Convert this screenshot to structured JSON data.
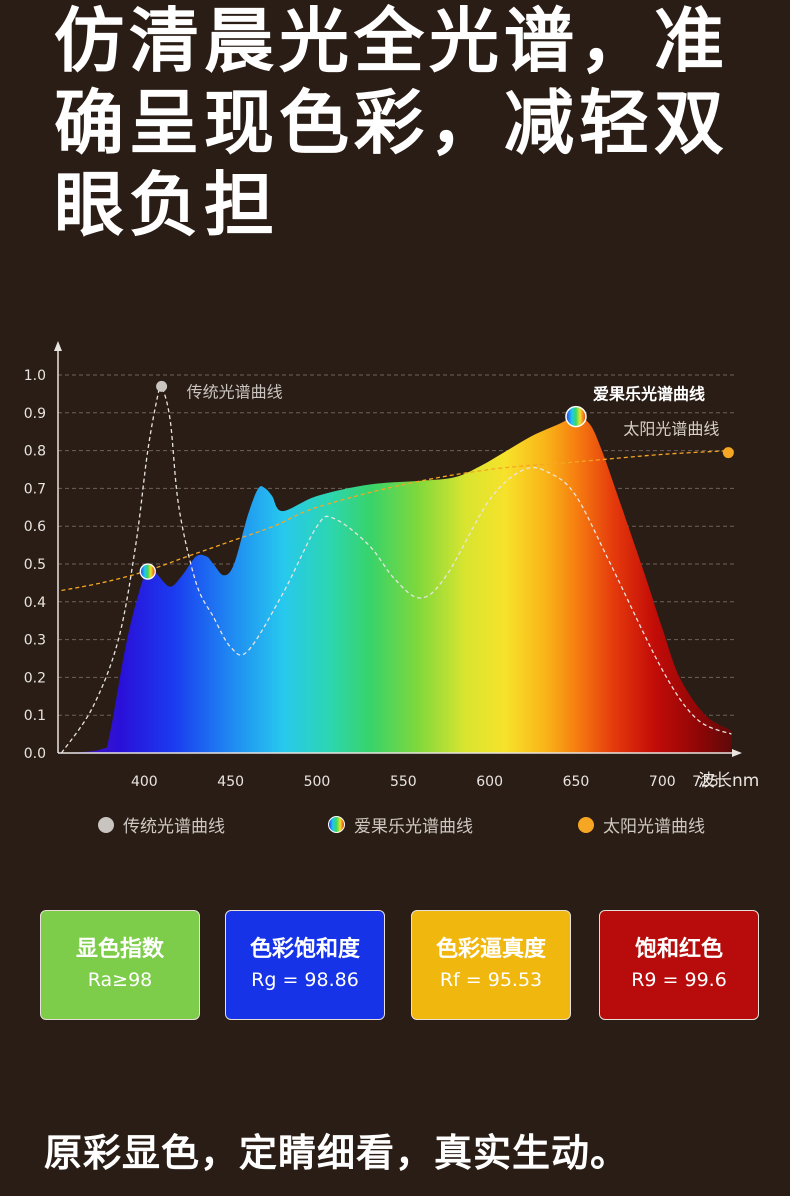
{
  "headline": "仿清晨光全光谱，准确呈现色彩，减轻双眼负担",
  "chart_data": {
    "type": "area",
    "title": "",
    "xlabel": "波长nm",
    "ylabel": "",
    "xlim": [
      350,
      745
    ],
    "ylim": [
      0,
      1.0
    ],
    "x_ticks": [
      400,
      450,
      500,
      550,
      600,
      650,
      700,
      725
    ],
    "y_ticks": [
      "0.0",
      "0.1",
      "0.2",
      "0.3",
      "0.4",
      "0.5",
      "0.6",
      "0.7",
      "0.8",
      "0.9",
      "1.0"
    ],
    "grid": true,
    "series": [
      {
        "name": "传统光谱曲线",
        "style": "dashed-line",
        "x": [
          352,
          370,
          385,
          395,
          402,
          408,
          410,
          415,
          420,
          430,
          440,
          450,
          460,
          480,
          500,
          510,
          530,
          545,
          560,
          575,
          600,
          620,
          635,
          650,
          670,
          700,
          720,
          740
        ],
        "y": [
          0.0,
          0.12,
          0.3,
          0.55,
          0.8,
          0.95,
          0.97,
          0.88,
          0.65,
          0.45,
          0.36,
          0.28,
          0.27,
          0.42,
          0.6,
          0.62,
          0.55,
          0.46,
          0.41,
          0.47,
          0.67,
          0.75,
          0.74,
          0.68,
          0.5,
          0.22,
          0.09,
          0.05
        ]
      },
      {
        "name": "爱果乐光谱曲线",
        "style": "spectrum-area",
        "x": [
          352,
          375,
          380,
          390,
          400,
          404,
          408,
          415,
          422,
          430,
          436,
          440,
          446,
          452,
          460,
          466,
          470,
          474,
          480,
          500,
          530,
          560,
          580,
          595,
          610,
          625,
          640,
          650,
          658,
          665,
          675,
          690,
          700,
          710,
          725,
          740
        ],
        "y": [
          0.0,
          0.01,
          0.05,
          0.3,
          0.47,
          0.49,
          0.47,
          0.44,
          0.47,
          0.52,
          0.52,
          0.5,
          0.47,
          0.5,
          0.63,
          0.7,
          0.7,
          0.68,
          0.64,
          0.68,
          0.71,
          0.72,
          0.73,
          0.76,
          0.8,
          0.84,
          0.87,
          0.89,
          0.87,
          0.8,
          0.67,
          0.47,
          0.33,
          0.2,
          0.1,
          0.06
        ]
      },
      {
        "name": "太阳光谱曲线",
        "style": "dashed-line",
        "x": [
          352,
          375,
          400,
          425,
          450,
          475,
          500,
          550,
          600,
          650,
          700,
          740
        ],
        "y": [
          0.43,
          0.45,
          0.48,
          0.52,
          0.56,
          0.6,
          0.65,
          0.71,
          0.75,
          0.77,
          0.79,
          0.8
        ]
      }
    ],
    "annotations": [
      {
        "text": "传统光谱曲线",
        "x": 410,
        "y": 0.97
      },
      {
        "text": "爱果乐光谱曲线",
        "x": 650,
        "y": 0.89
      },
      {
        "text": "太阳光谱曲线",
        "x": 740,
        "y": 0.8
      },
      {
        "text": "",
        "x": 402,
        "y": 0.48
      }
    ],
    "legend_position": "bottom",
    "colors": {
      "traditional": "#c9c4c0",
      "sun": "#f5a623",
      "grid": "#6e625a",
      "axis": "#e9e4e0"
    }
  },
  "legend": [
    {
      "label": "传统光谱曲线",
      "icon": "gray-dot",
      "color": "#c9c4c0"
    },
    {
      "label": "爱果乐光谱曲线",
      "icon": "rainbow-dot",
      "color": "rainbow"
    },
    {
      "label": "太阳光谱曲线",
      "icon": "orange-dot",
      "color": "#f5a623"
    }
  ],
  "metrics": [
    {
      "title": "显色指数",
      "value": "Ra≥98",
      "color": "#7dcc4a"
    },
    {
      "title": "色彩饱和度",
      "value": "Rg = 98.86",
      "color": "#1633e8"
    },
    {
      "title": "色彩逼真度",
      "value": "Rf = 95.53",
      "color": "#f0b80f"
    },
    {
      "title": "饱和红色",
      "value": "R9 = 99.6",
      "color": "#b80c0c"
    }
  ],
  "footer": "原彩显色，定睛细看，真实生动。"
}
